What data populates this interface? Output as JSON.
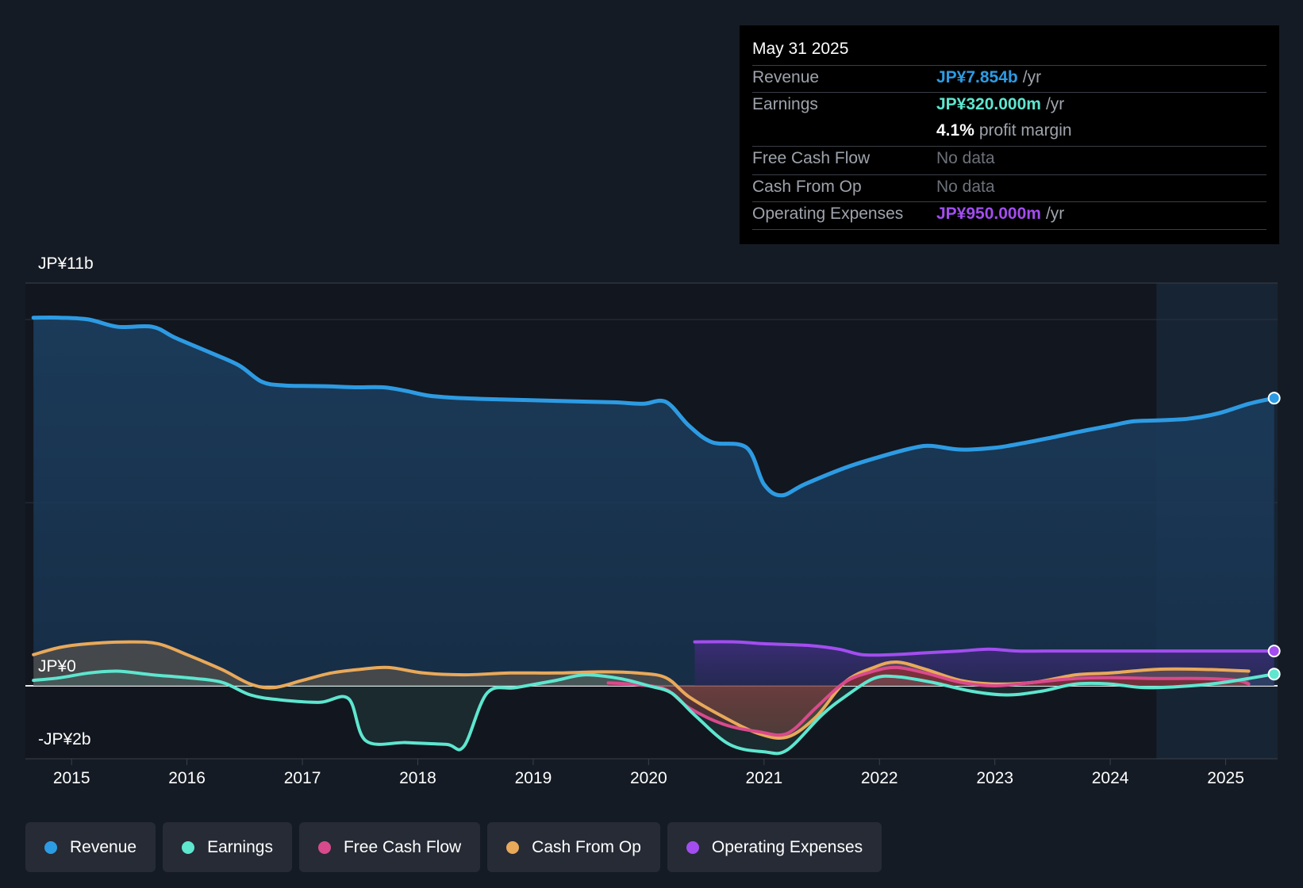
{
  "tooltip": {
    "date": "May 31 2025",
    "rows": [
      {
        "label": "Revenue",
        "value": "JP¥7.854b",
        "unit": "/yr",
        "color": "#2d9be3"
      },
      {
        "label": "Earnings",
        "value": "JP¥320.000m",
        "unit": "/yr",
        "color": "#5ee6cf"
      },
      {
        "label": "",
        "value": "4.1%",
        "unit": "profit margin",
        "color": "#ffffff"
      },
      {
        "label": "Free Cash Flow",
        "value": "No data",
        "unit": "",
        "color": "#6d7179"
      },
      {
        "label": "Cash From Op",
        "value": "No data",
        "unit": "",
        "color": "#6d7179"
      },
      {
        "label": "Operating Expenses",
        "value": "JP¥950.000m",
        "unit": "/yr",
        "color": "#a34df0"
      }
    ]
  },
  "y_labels": {
    "top": "JP¥11b",
    "zero": "JP¥0",
    "bottom": "-JP¥2b"
  },
  "legend": [
    {
      "label": "Revenue",
      "color": "#2d9be3"
    },
    {
      "label": "Earnings",
      "color": "#5ee6cf"
    },
    {
      "label": "Free Cash Flow",
      "color": "#d94a8c"
    },
    {
      "label": "Cash From Op",
      "color": "#e9a95a"
    },
    {
      "label": "Operating Expenses",
      "color": "#a34df0"
    }
  ],
  "chart_data": {
    "type": "area",
    "title": "",
    "xlabel": "",
    "ylabel": "",
    "x_ticks": [
      2015,
      2016,
      2017,
      2018,
      2019,
      2020,
      2021,
      2022,
      2023,
      2024,
      2025
    ],
    "x_range": [
      2014.6,
      2025.45
    ],
    "ylim": [
      -2,
      11
    ],
    "grid_values": [
      10,
      5,
      0
    ],
    "forecast_start": 2024.4,
    "series": [
      {
        "name": "Revenue",
        "color": "#2d9be3",
        "points": [
          [
            2014.67,
            10.05
          ],
          [
            2014.9,
            10.05
          ],
          [
            2015.15,
            10.0
          ],
          [
            2015.4,
            9.8
          ],
          [
            2015.7,
            9.8
          ],
          [
            2015.9,
            9.5
          ],
          [
            2016.2,
            9.1
          ],
          [
            2016.45,
            8.75
          ],
          [
            2016.65,
            8.3
          ],
          [
            2016.85,
            8.2
          ],
          [
            2017.2,
            8.18
          ],
          [
            2017.45,
            8.15
          ],
          [
            2017.7,
            8.15
          ],
          [
            2017.9,
            8.05
          ],
          [
            2018.1,
            7.92
          ],
          [
            2018.4,
            7.85
          ],
          [
            2018.7,
            7.82
          ],
          [
            2018.95,
            7.8
          ],
          [
            2019.3,
            7.77
          ],
          [
            2019.7,
            7.74
          ],
          [
            2019.95,
            7.7
          ],
          [
            2020.15,
            7.75
          ],
          [
            2020.35,
            7.1
          ],
          [
            2020.55,
            6.65
          ],
          [
            2020.85,
            6.5
          ],
          [
            2021.0,
            5.5
          ],
          [
            2021.15,
            5.2
          ],
          [
            2021.35,
            5.5
          ],
          [
            2021.7,
            5.95
          ],
          [
            2022.0,
            6.25
          ],
          [
            2022.3,
            6.5
          ],
          [
            2022.45,
            6.55
          ],
          [
            2022.7,
            6.45
          ],
          [
            2023.0,
            6.5
          ],
          [
            2023.2,
            6.6
          ],
          [
            2023.45,
            6.75
          ],
          [
            2023.75,
            6.95
          ],
          [
            2024.0,
            7.1
          ],
          [
            2024.2,
            7.22
          ],
          [
            2024.45,
            7.25
          ],
          [
            2024.7,
            7.3
          ],
          [
            2024.95,
            7.45
          ],
          [
            2025.2,
            7.7
          ],
          [
            2025.42,
            7.854
          ]
        ]
      },
      {
        "name": "Earnings",
        "color": "#5ee6cf",
        "points": [
          [
            2014.67,
            0.15
          ],
          [
            2014.9,
            0.22
          ],
          [
            2015.15,
            0.35
          ],
          [
            2015.4,
            0.4
          ],
          [
            2015.7,
            0.3
          ],
          [
            2016.0,
            0.22
          ],
          [
            2016.3,
            0.1
          ],
          [
            2016.55,
            -0.25
          ],
          [
            2016.8,
            -0.38
          ],
          [
            2017.15,
            -0.45
          ],
          [
            2017.4,
            -0.35
          ],
          [
            2017.55,
            -1.5
          ],
          [
            2017.9,
            -1.55
          ],
          [
            2018.25,
            -1.6
          ],
          [
            2018.4,
            -1.65
          ],
          [
            2018.6,
            -0.2
          ],
          [
            2018.85,
            -0.05
          ],
          [
            2019.2,
            0.15
          ],
          [
            2019.45,
            0.3
          ],
          [
            2019.75,
            0.2
          ],
          [
            2020.0,
            0.0
          ],
          [
            2020.2,
            -0.2
          ],
          [
            2020.4,
            -0.8
          ],
          [
            2020.7,
            -1.6
          ],
          [
            2021.0,
            -1.8
          ],
          [
            2021.2,
            -1.75
          ],
          [
            2021.5,
            -0.8
          ],
          [
            2021.7,
            -0.3
          ],
          [
            2021.95,
            0.2
          ],
          [
            2022.15,
            0.25
          ],
          [
            2022.45,
            0.1
          ],
          [
            2022.8,
            -0.15
          ],
          [
            2023.1,
            -0.25
          ],
          [
            2023.4,
            -0.15
          ],
          [
            2023.7,
            0.05
          ],
          [
            2024.0,
            0.05
          ],
          [
            2024.3,
            -0.05
          ],
          [
            2024.7,
            0.0
          ],
          [
            2025.0,
            0.1
          ],
          [
            2025.42,
            0.32
          ]
        ]
      },
      {
        "name": "Free Cash Flow",
        "color": "#d94a8c",
        "points": [
          [
            2019.65,
            0.08
          ],
          [
            2019.9,
            0.03
          ],
          [
            2020.15,
            -0.1
          ],
          [
            2020.35,
            -0.6
          ],
          [
            2020.65,
            -1.05
          ],
          [
            2020.95,
            -1.25
          ],
          [
            2021.2,
            -1.3
          ],
          [
            2021.45,
            -0.6
          ],
          [
            2021.7,
            0.1
          ],
          [
            2021.95,
            0.4
          ],
          [
            2022.15,
            0.5
          ],
          [
            2022.4,
            0.35
          ],
          [
            2022.7,
            0.1
          ],
          [
            2023.0,
            0.0
          ],
          [
            2023.35,
            0.1
          ],
          [
            2023.7,
            0.2
          ],
          [
            2024.0,
            0.22
          ],
          [
            2024.4,
            0.2
          ],
          [
            2024.8,
            0.2
          ],
          [
            2025.1,
            0.15
          ],
          [
            2025.2,
            0.05
          ]
        ]
      },
      {
        "name": "Cash From Op",
        "color": "#e9a95a",
        "points": [
          [
            2014.67,
            0.85
          ],
          [
            2014.9,
            1.05
          ],
          [
            2015.15,
            1.15
          ],
          [
            2015.5,
            1.2
          ],
          [
            2015.75,
            1.15
          ],
          [
            2016.0,
            0.85
          ],
          [
            2016.3,
            0.45
          ],
          [
            2016.55,
            0.05
          ],
          [
            2016.75,
            -0.05
          ],
          [
            2017.0,
            0.15
          ],
          [
            2017.25,
            0.35
          ],
          [
            2017.5,
            0.45
          ],
          [
            2017.75,
            0.5
          ],
          [
            2018.05,
            0.35
          ],
          [
            2018.4,
            0.3
          ],
          [
            2018.8,
            0.35
          ],
          [
            2019.2,
            0.35
          ],
          [
            2019.6,
            0.38
          ],
          [
            2019.9,
            0.35
          ],
          [
            2020.15,
            0.22
          ],
          [
            2020.35,
            -0.3
          ],
          [
            2020.65,
            -0.85
          ],
          [
            2020.95,
            -1.3
          ],
          [
            2021.2,
            -1.4
          ],
          [
            2021.45,
            -0.85
          ],
          [
            2021.7,
            0.1
          ],
          [
            2021.95,
            0.5
          ],
          [
            2022.15,
            0.65
          ],
          [
            2022.4,
            0.45
          ],
          [
            2022.7,
            0.15
          ],
          [
            2023.0,
            0.05
          ],
          [
            2023.35,
            0.1
          ],
          [
            2023.7,
            0.3
          ],
          [
            2024.0,
            0.35
          ],
          [
            2024.4,
            0.45
          ],
          [
            2024.8,
            0.45
          ],
          [
            2025.2,
            0.4
          ]
        ]
      },
      {
        "name": "Operating Expenses",
        "color": "#a34df0",
        "points": [
          [
            2020.4,
            1.2
          ],
          [
            2020.75,
            1.2
          ],
          [
            2021.0,
            1.15
          ],
          [
            2021.4,
            1.1
          ],
          [
            2021.65,
            1.0
          ],
          [
            2021.85,
            0.85
          ],
          [
            2022.1,
            0.85
          ],
          [
            2022.4,
            0.9
          ],
          [
            2022.7,
            0.95
          ],
          [
            2022.95,
            1.0
          ],
          [
            2023.2,
            0.95
          ],
          [
            2023.55,
            0.95
          ],
          [
            2023.85,
            0.95
          ],
          [
            2024.2,
            0.95
          ],
          [
            2024.55,
            0.95
          ],
          [
            2024.9,
            0.95
          ],
          [
            2025.42,
            0.95
          ]
        ]
      }
    ]
  }
}
